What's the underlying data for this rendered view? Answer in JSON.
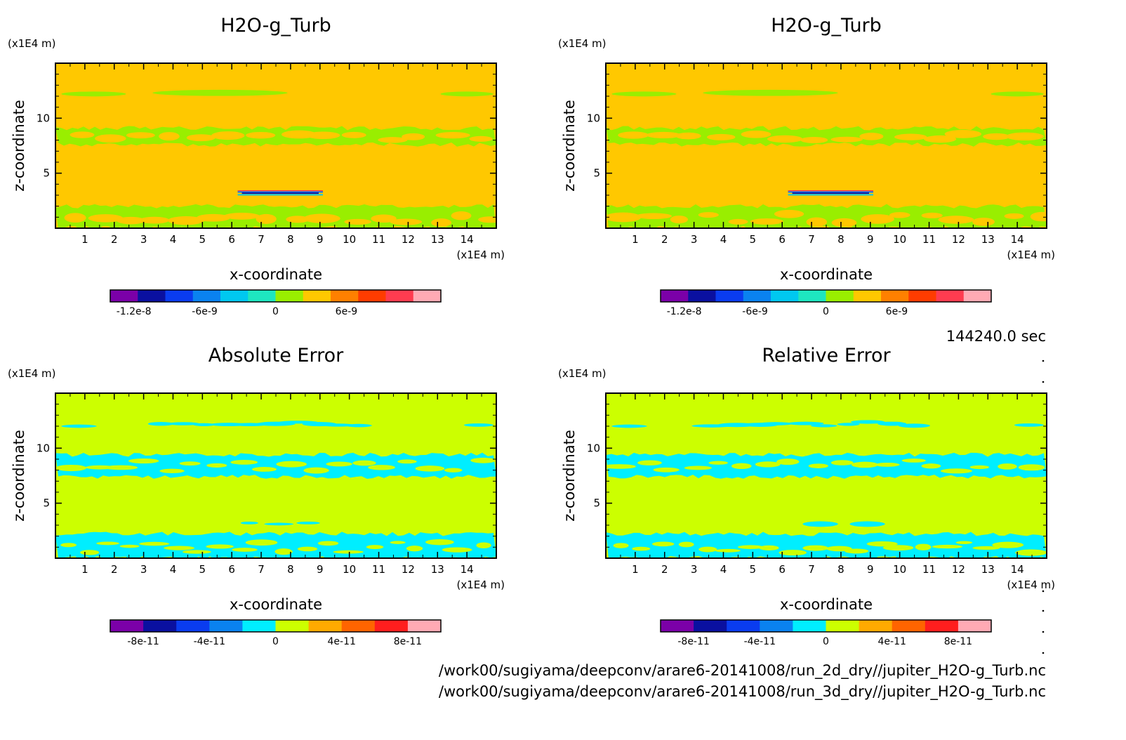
{
  "time_label": "144240.0 sec",
  "footer": {
    "line1": "/work00/sugiyama/deepconv/arare6-20141008/run_2d_dry//jupiter_H2O-g_Turb.nc",
    "line2": "/work00/sugiyama/deepconv/arare6-20141008/run_3d_dry//jupiter_H2O-g_Turb.nc"
  },
  "chart_data": [
    {
      "type": "heatmap",
      "title": "H2O-g_Turb",
      "xlabel": "x-coordinate",
      "ylabel": "z-coordinate",
      "x_unit": "(x1E4 m)",
      "y_unit": "(x1E4 m)",
      "xlim": [
        0,
        15
      ],
      "ylim": [
        0,
        15
      ],
      "x_ticks": [
        "1",
        "2",
        "3",
        "4",
        "5",
        "6",
        "7",
        "8",
        "9",
        "10",
        "11",
        "12",
        "13",
        "14"
      ],
      "y_ticks": [
        "5",
        "10"
      ],
      "background_color": "#ffc800",
      "field_color": "#99ee00",
      "colorbar": {
        "range": [
          -1.4e-08,
          1.4e-08
        ],
        "levels": 11,
        "colors": [
          "#7b00a8",
          "#0a10a0",
          "#0a3cf0",
          "#0a82f0",
          "#00c8f0",
          "#1ee6c0",
          "#99ee00",
          "#ffc800",
          "#ff8000",
          "#ff3c00",
          "#ff3c50",
          "#ffaab4"
        ],
        "tick_labels": [
          "-1.2e-8",
          "-6e-9",
          "0",
          "6e-9"
        ],
        "tick_values": [
          -1.2e-08,
          -6e-09,
          0,
          6e-09
        ]
      },
      "feature": "thin dipole layer near z = 3.2 between x = 6.2 and 9.1"
    },
    {
      "type": "heatmap",
      "title": "H2O-g_Turb",
      "xlabel": "x-coordinate",
      "ylabel": "z-coordinate",
      "x_unit": "(x1E4 m)",
      "y_unit": "(x1E4 m)",
      "xlim": [
        0,
        15
      ],
      "ylim": [
        0,
        15
      ],
      "x_ticks": [
        "1",
        "2",
        "3",
        "4",
        "5",
        "6",
        "7",
        "8",
        "9",
        "10",
        "11",
        "12",
        "13",
        "14"
      ],
      "y_ticks": [
        "5",
        "10"
      ],
      "background_color": "#ffc800",
      "field_color": "#99ee00",
      "colorbar": {
        "range": [
          -1.4e-08,
          1.4e-08
        ],
        "levels": 11,
        "colors": [
          "#7b00a8",
          "#0a10a0",
          "#0a3cf0",
          "#0a82f0",
          "#00c8f0",
          "#1ee6c0",
          "#99ee00",
          "#ffc800",
          "#ff8000",
          "#ff3c00",
          "#ff3c50",
          "#ffaab4"
        ],
        "tick_labels": [
          "-1.2e-8",
          "-6e-9",
          "0",
          "6e-9"
        ],
        "tick_values": [
          -1.2e-08,
          -6e-09,
          0,
          6e-09
        ]
      },
      "feature": "thin dipole layer near z = 3.2 between x = 6.2 and 9.1"
    },
    {
      "type": "heatmap",
      "title": "Absolute Error",
      "xlabel": "x-coordinate",
      "ylabel": "z-coordinate",
      "x_unit": "(x1E4 m)",
      "y_unit": "(x1E4 m)",
      "xlim": [
        0,
        15
      ],
      "ylim": [
        0,
        15
      ],
      "x_ticks": [
        "1",
        "2",
        "3",
        "4",
        "5",
        "6",
        "7",
        "8",
        "9",
        "10",
        "11",
        "12",
        "13",
        "14"
      ],
      "y_ticks": [
        "5",
        "10"
      ],
      "background_color": "#ccff00",
      "field_color": "#00eeff",
      "colorbar": {
        "range": [
          -1e-10,
          1e-10
        ],
        "levels": 10,
        "colors": [
          "#7b00a8",
          "#0a10a0",
          "#0a3cf0",
          "#0a82f0",
          "#00eeff",
          "#ccff00",
          "#ffaa00",
          "#ff6400",
          "#ff1e1e",
          "#ffaab4"
        ],
        "tick_labels": [
          "-8e-11",
          "-4e-11",
          "0",
          "4e-11",
          "8e-11"
        ],
        "tick_values": [
          -8e-11,
          -4e-11,
          0,
          4e-11,
          8e-11
        ]
      }
    },
    {
      "type": "heatmap",
      "title": "Relative Error",
      "xlabel": "x-coordinate",
      "ylabel": "z-coordinate",
      "x_unit": "(x1E4 m)",
      "y_unit": "(x1E4 m)",
      "xlim": [
        0,
        15
      ],
      "ylim": [
        0,
        15
      ],
      "x_ticks": [
        "1",
        "2",
        "3",
        "4",
        "5",
        "6",
        "7",
        "8",
        "9",
        "10",
        "11",
        "12",
        "13",
        "14"
      ],
      "y_ticks": [
        "5",
        "10"
      ],
      "background_color": "#ccff00",
      "field_color": "#00eeff",
      "colorbar": {
        "range": [
          -1e-10,
          1e-10
        ],
        "levels": 10,
        "colors": [
          "#7b00a8",
          "#0a10a0",
          "#0a3cf0",
          "#0a82f0",
          "#00eeff",
          "#ccff00",
          "#ffaa00",
          "#ff6400",
          "#ff1e1e",
          "#ffaab4"
        ],
        "tick_labels": [
          "-8e-11",
          "-4e-11",
          "0",
          "4e-11",
          "8e-11"
        ],
        "tick_values": [
          -8e-11,
          -4e-11,
          0,
          4e-11,
          8e-11
        ]
      }
    }
  ]
}
